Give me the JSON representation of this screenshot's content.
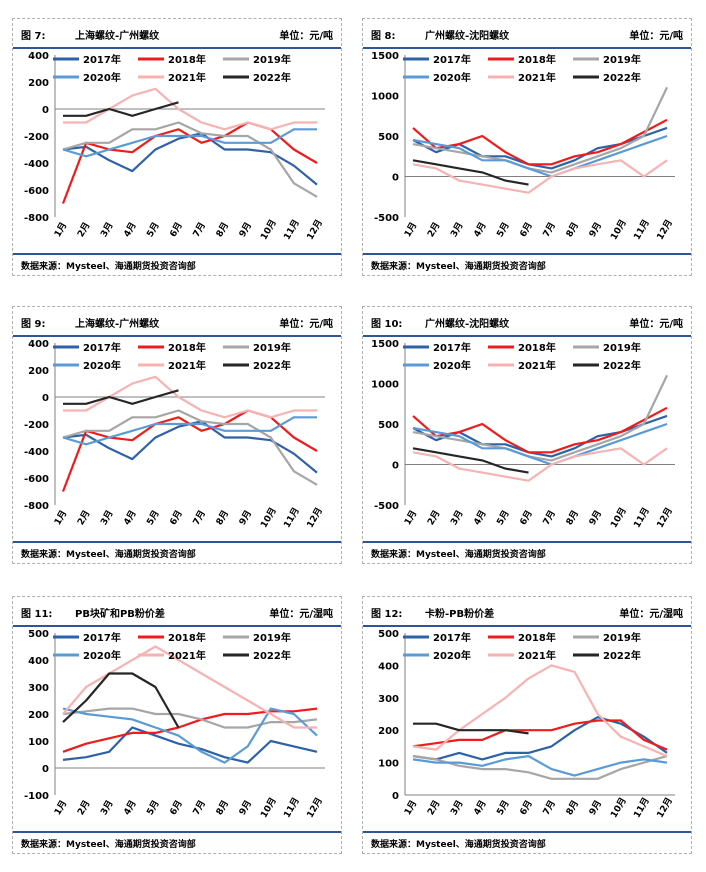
{
  "page": {
    "source": "数据来源：Mysteel、海通期货投资咨询部"
  },
  "colors": {
    "2017": "#2e62a8",
    "2018": "#ee1c1c",
    "2019": "#a6a6a6",
    "2020": "#5b9bd5",
    "2021": "#f7b2b2",
    "2022": "#262626"
  },
  "panels": [
    {
      "fig": "图 7:",
      "title": "上海螺纹-广州螺纹",
      "unit": "单位：元/吨"
    },
    {
      "fig": "图 8:",
      "title": "广州螺纹-沈阳螺纹",
      "unit": "单位：元/吨"
    },
    {
      "fig": "图 9:",
      "title": "上海螺纹-广州螺纹",
      "unit": "单位：元/吨"
    },
    {
      "fig": "图 10:",
      "title": "广州螺纹-沈阳螺纹",
      "unit": "单位：元/吨"
    },
    {
      "fig": "图 11:",
      "title": "PB块矿和PB粉价差",
      "unit": "单位：元/湿吨"
    },
    {
      "fig": "图 12:",
      "title": "卡粉-PB粉价差",
      "unit": "单位：元/湿吨"
    }
  ],
  "chart_data": [
    {
      "type": "line",
      "x": [
        "1月",
        "2月",
        "3月",
        "4月",
        "5月",
        "6月",
        "7月",
        "8月",
        "9月",
        "10月",
        "11月",
        "12月"
      ],
      "ylim": [
        -800,
        400
      ],
      "yticks": [
        -800,
        -600,
        -400,
        -200,
        0,
        200,
        400
      ],
      "series": [
        {
          "name": "2017年",
          "values": [
            -300,
            -280,
            -380,
            -460,
            -300,
            -220,
            -180,
            -300,
            -300,
            -320,
            -420,
            -560
          ]
        },
        {
          "name": "2018年",
          "values": [
            -700,
            -250,
            -300,
            -320,
            -200,
            -150,
            -250,
            -200,
            -100,
            -150,
            -300,
            -400
          ]
        },
        {
          "name": "2019年",
          "values": [
            -300,
            -250,
            -250,
            -150,
            -150,
            -100,
            -180,
            -200,
            -200,
            -300,
            -550,
            -650
          ]
        },
        {
          "name": "2020年",
          "values": [
            -300,
            -350,
            -300,
            -250,
            -200,
            -200,
            -200,
            -250,
            -250,
            -250,
            -150,
            -150
          ]
        },
        {
          "name": "2021年",
          "values": [
            -100,
            -100,
            0,
            100,
            150,
            0,
            -100,
            -150,
            -100,
            -150,
            -100,
            -100
          ]
        },
        {
          "name": "2022年",
          "values": [
            -50,
            -50,
            0,
            -50,
            0,
            50,
            null,
            null,
            null,
            null,
            null,
            null
          ]
        }
      ]
    },
    {
      "type": "line",
      "x": [
        "1月",
        "2月",
        "3月",
        "4月",
        "5月",
        "6月",
        "7月",
        "8月",
        "9月",
        "10月",
        "11月",
        "12月"
      ],
      "ylim": [
        -500,
        1500
      ],
      "yticks": [
        -500,
        0,
        500,
        1000,
        1500
      ],
      "series": [
        {
          "name": "2017年",
          "values": [
            450,
            300,
            400,
            250,
            250,
            150,
            100,
            200,
            350,
            400,
            500,
            600
          ]
        },
        {
          "name": "2018年",
          "values": [
            600,
            350,
            400,
            500,
            300,
            150,
            150,
            250,
            300,
            400,
            550,
            700
          ]
        },
        {
          "name": "2019年",
          "values": [
            400,
            350,
            300,
            250,
            200,
            100,
            50,
            150,
            250,
            350,
            500,
            1100
          ]
        },
        {
          "name": "2020年",
          "values": [
            450,
            400,
            350,
            200,
            200,
            100,
            0,
            100,
            200,
            300,
            400,
            500
          ]
        },
        {
          "name": "2021年",
          "values": [
            150,
            100,
            -50,
            -100,
            -150,
            -200,
            0,
            100,
            150,
            200,
            0,
            200
          ]
        },
        {
          "name": "2022年",
          "values": [
            200,
            150,
            100,
            50,
            -50,
            -100,
            null,
            null,
            null,
            null,
            null,
            null
          ]
        }
      ]
    },
    {
      "type": "line",
      "x": [
        "1月",
        "2月",
        "3月",
        "4月",
        "5月",
        "6月",
        "7月",
        "8月",
        "9月",
        "10月",
        "11月",
        "12月"
      ],
      "ylim": [
        -800,
        400
      ],
      "yticks": [
        -800,
        -600,
        -400,
        -200,
        0,
        200,
        400
      ],
      "series": [
        {
          "name": "2017年",
          "values": [
            -300,
            -280,
            -380,
            -460,
            -300,
            -220,
            -180,
            -300,
            -300,
            -320,
            -420,
            -560
          ]
        },
        {
          "name": "2018年",
          "values": [
            -700,
            -250,
            -300,
            -320,
            -200,
            -150,
            -250,
            -200,
            -100,
            -150,
            -300,
            -400
          ]
        },
        {
          "name": "2019年",
          "values": [
            -300,
            -250,
            -250,
            -150,
            -150,
            -100,
            -180,
            -200,
            -200,
            -300,
            -550,
            -650
          ]
        },
        {
          "name": "2020年",
          "values": [
            -300,
            -350,
            -300,
            -250,
            -200,
            -200,
            -200,
            -250,
            -250,
            -250,
            -150,
            -150
          ]
        },
        {
          "name": "2021年",
          "values": [
            -100,
            -100,
            0,
            100,
            150,
            0,
            -100,
            -150,
            -100,
            -150,
            -100,
            -100
          ]
        },
        {
          "name": "2022年",
          "values": [
            -50,
            -50,
            0,
            -50,
            0,
            50,
            null,
            null,
            null,
            null,
            null,
            null
          ]
        }
      ]
    },
    {
      "type": "line",
      "x": [
        "1月",
        "2月",
        "3月",
        "4月",
        "5月",
        "6月",
        "7月",
        "8月",
        "9月",
        "10月",
        "11月",
        "12月"
      ],
      "ylim": [
        -500,
        1500
      ],
      "yticks": [
        -500,
        0,
        500,
        1000,
        1500
      ],
      "series": [
        {
          "name": "2017年",
          "values": [
            450,
            300,
            400,
            250,
            250,
            150,
            100,
            200,
            350,
            400,
            500,
            600
          ]
        },
        {
          "name": "2018年",
          "values": [
            600,
            350,
            400,
            500,
            300,
            150,
            150,
            250,
            300,
            400,
            550,
            700
          ]
        },
        {
          "name": "2019年",
          "values": [
            400,
            350,
            300,
            250,
            200,
            100,
            50,
            150,
            250,
            350,
            500,
            1100
          ]
        },
        {
          "name": "2020年",
          "values": [
            450,
            400,
            350,
            200,
            200,
            100,
            0,
            100,
            200,
            300,
            400,
            500
          ]
        },
        {
          "name": "2021年",
          "values": [
            150,
            100,
            -50,
            -100,
            -150,
            -200,
            0,
            100,
            150,
            200,
            0,
            200
          ]
        },
        {
          "name": "2022年",
          "values": [
            200,
            150,
            100,
            50,
            -50,
            -100,
            null,
            null,
            null,
            null,
            null,
            null
          ]
        }
      ]
    },
    {
      "type": "line",
      "x": [
        "1月",
        "2月",
        "3月",
        "4月",
        "5月",
        "6月",
        "7月",
        "8月",
        "9月",
        "10月",
        "11月",
        "12月"
      ],
      "ylim": [
        -100,
        500
      ],
      "yticks": [
        -100,
        0,
        100,
        200,
        300,
        400,
        500
      ],
      "series": [
        {
          "name": "2017年",
          "values": [
            30,
            40,
            60,
            150,
            120,
            90,
            70,
            40,
            20,
            100,
            80,
            60
          ]
        },
        {
          "name": "2018年",
          "values": [
            60,
            90,
            110,
            130,
            130,
            150,
            180,
            200,
            200,
            210,
            210,
            220
          ]
        },
        {
          "name": "2019年",
          "values": [
            200,
            210,
            220,
            220,
            200,
            200,
            180,
            150,
            150,
            170,
            170,
            180
          ]
        },
        {
          "name": "2020年",
          "values": [
            220,
            200,
            190,
            180,
            150,
            120,
            60,
            20,
            80,
            220,
            200,
            120
          ]
        },
        {
          "name": "2021年",
          "values": [
            200,
            300,
            350,
            400,
            450,
            400,
            350,
            300,
            250,
            200,
            150,
            150
          ]
        },
        {
          "name": "2022年",
          "values": [
            170,
            250,
            350,
            350,
            300,
            150,
            null,
            null,
            null,
            null,
            null,
            null
          ]
        }
      ]
    },
    {
      "type": "line",
      "x": [
        "1月",
        "2月",
        "3月",
        "4月",
        "5月",
        "6月",
        "7月",
        "8月",
        "9月",
        "10月",
        "11月",
        "12月"
      ],
      "ylim": [
        0,
        500
      ],
      "yticks": [
        0,
        100,
        200,
        300,
        400,
        500
      ],
      "series": [
        {
          "name": "2017年",
          "values": [
            120,
            110,
            130,
            110,
            130,
            130,
            150,
            200,
            240,
            220,
            180,
            130
          ]
        },
        {
          "name": "2018年",
          "values": [
            150,
            160,
            170,
            170,
            200,
            200,
            200,
            220,
            230,
            230,
            170,
            140
          ]
        },
        {
          "name": "2019年",
          "values": [
            120,
            110,
            90,
            80,
            80,
            70,
            50,
            50,
            50,
            80,
            100,
            120
          ]
        },
        {
          "name": "2020年",
          "values": [
            110,
            100,
            100,
            90,
            110,
            120,
            80,
            60,
            80,
            100,
            110,
            100
          ]
        },
        {
          "name": "2021年",
          "values": [
            150,
            140,
            200,
            250,
            300,
            360,
            400,
            380,
            250,
            180,
            150,
            120
          ]
        },
        {
          "name": "2022年",
          "values": [
            220,
            220,
            200,
            200,
            200,
            190,
            null,
            null,
            null,
            null,
            null,
            null
          ]
        }
      ]
    }
  ]
}
